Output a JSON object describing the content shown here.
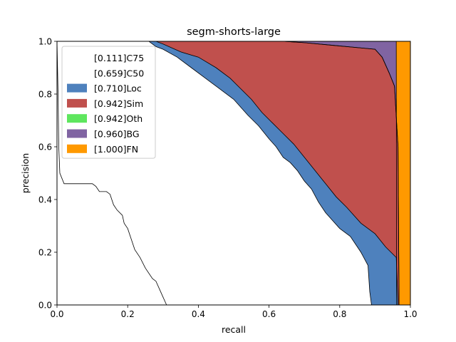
{
  "chart_data": {
    "type": "area",
    "title": "segm-shorts-large",
    "xlabel": "recall",
    "ylabel": "precision",
    "xlim": [
      0,
      1
    ],
    "ylim": [
      0,
      1
    ],
    "xticks": [
      "0.0",
      "0.2",
      "0.4",
      "0.6",
      "0.8",
      "1.0"
    ],
    "yticks": [
      "0.0",
      "0.2",
      "0.4",
      "0.6",
      "0.8",
      "1.0"
    ],
    "grid": false,
    "legend_position": "upper-left",
    "series": [
      {
        "name": "[0.111]C75",
        "color": "#ffffff",
        "points": [
          [
            0,
            1.0
          ],
          [
            0.003,
            0.8
          ],
          [
            0.005,
            0.6
          ],
          [
            0.008,
            0.5
          ],
          [
            0.02,
            0.46
          ],
          [
            0.1,
            0.46
          ],
          [
            0.11,
            0.45
          ],
          [
            0.12,
            0.43
          ],
          [
            0.14,
            0.43
          ],
          [
            0.15,
            0.42
          ],
          [
            0.16,
            0.38
          ],
          [
            0.17,
            0.36
          ],
          [
            0.185,
            0.34
          ],
          [
            0.19,
            0.31
          ],
          [
            0.2,
            0.29
          ],
          [
            0.21,
            0.25
          ],
          [
            0.22,
            0.21
          ],
          [
            0.235,
            0.18
          ],
          [
            0.25,
            0.14
          ],
          [
            0.27,
            0.1
          ],
          [
            0.28,
            0.09
          ],
          [
            0.29,
            0.06
          ],
          [
            0.3,
            0.03
          ],
          [
            0.31,
            0.0
          ]
        ]
      },
      {
        "name": "[0.659]C50",
        "color": "#ffffff",
        "points": [
          [
            0,
            1.0
          ],
          [
            0.26,
            1.0
          ],
          [
            0.28,
            0.98
          ],
          [
            0.3,
            0.97
          ],
          [
            0.34,
            0.94
          ],
          [
            0.38,
            0.9
          ],
          [
            0.42,
            0.86
          ],
          [
            0.46,
            0.82
          ],
          [
            0.5,
            0.78
          ],
          [
            0.54,
            0.72
          ],
          [
            0.57,
            0.68
          ],
          [
            0.6,
            0.63
          ],
          [
            0.62,
            0.6
          ],
          [
            0.64,
            0.56
          ],
          [
            0.66,
            0.54
          ],
          [
            0.68,
            0.51
          ],
          [
            0.7,
            0.47
          ],
          [
            0.72,
            0.44
          ],
          [
            0.74,
            0.39
          ],
          [
            0.76,
            0.35
          ],
          [
            0.78,
            0.32
          ],
          [
            0.8,
            0.29
          ],
          [
            0.83,
            0.26
          ],
          [
            0.86,
            0.2
          ],
          [
            0.88,
            0.15
          ],
          [
            0.885,
            0.05
          ],
          [
            0.89,
            0.0
          ]
        ]
      },
      {
        "name": "[0.710]Loc",
        "color": "#4e81bd",
        "points": [
          [
            0,
            1.0
          ],
          [
            0.28,
            1.0
          ],
          [
            0.3,
            0.99
          ],
          [
            0.35,
            0.96
          ],
          [
            0.4,
            0.94
          ],
          [
            0.45,
            0.9
          ],
          [
            0.49,
            0.86
          ],
          [
            0.52,
            0.82
          ],
          [
            0.55,
            0.78
          ],
          [
            0.58,
            0.73
          ],
          [
            0.61,
            0.69
          ],
          [
            0.64,
            0.65
          ],
          [
            0.67,
            0.61
          ],
          [
            0.7,
            0.56
          ],
          [
            0.73,
            0.51
          ],
          [
            0.76,
            0.46
          ],
          [
            0.79,
            0.41
          ],
          [
            0.82,
            0.37
          ],
          [
            0.86,
            0.31
          ],
          [
            0.9,
            0.27
          ],
          [
            0.93,
            0.22
          ],
          [
            0.96,
            0.18
          ],
          [
            0.965,
            0.0
          ]
        ]
      },
      {
        "name": "[0.942]Sim",
        "color": "#c0504d",
        "points": [
          [
            0,
            1.0
          ],
          [
            0.64,
            1.0
          ],
          [
            0.7,
            0.995
          ],
          [
            0.78,
            0.985
          ],
          [
            0.86,
            0.975
          ],
          [
            0.9,
            0.97
          ],
          [
            0.92,
            0.94
          ],
          [
            0.94,
            0.88
          ],
          [
            0.955,
            0.83
          ],
          [
            0.965,
            0.6
          ],
          [
            0.968,
            0.0
          ]
        ]
      },
      {
        "name": "[0.942]Oth",
        "color": "#5ee65e",
        "points": [
          [
            0,
            1.0
          ],
          [
            0.64,
            1.0
          ],
          [
            0.7,
            0.995
          ],
          [
            0.78,
            0.985
          ],
          [
            0.86,
            0.975
          ],
          [
            0.9,
            0.97
          ],
          [
            0.92,
            0.94
          ],
          [
            0.94,
            0.88
          ],
          [
            0.955,
            0.83
          ],
          [
            0.965,
            0.6
          ],
          [
            0.968,
            0.0
          ]
        ]
      },
      {
        "name": "[0.960]BG",
        "color": "#8064a2",
        "points": [
          [
            0,
            1.0
          ],
          [
            0.96,
            1.0
          ],
          [
            0.961,
            0.0
          ]
        ]
      },
      {
        "name": "[1.000]FN",
        "color": "#ff9900",
        "points": [
          [
            0,
            1.0
          ],
          [
            1.0,
            1.0
          ],
          [
            1.0,
            0.0
          ]
        ]
      }
    ]
  }
}
